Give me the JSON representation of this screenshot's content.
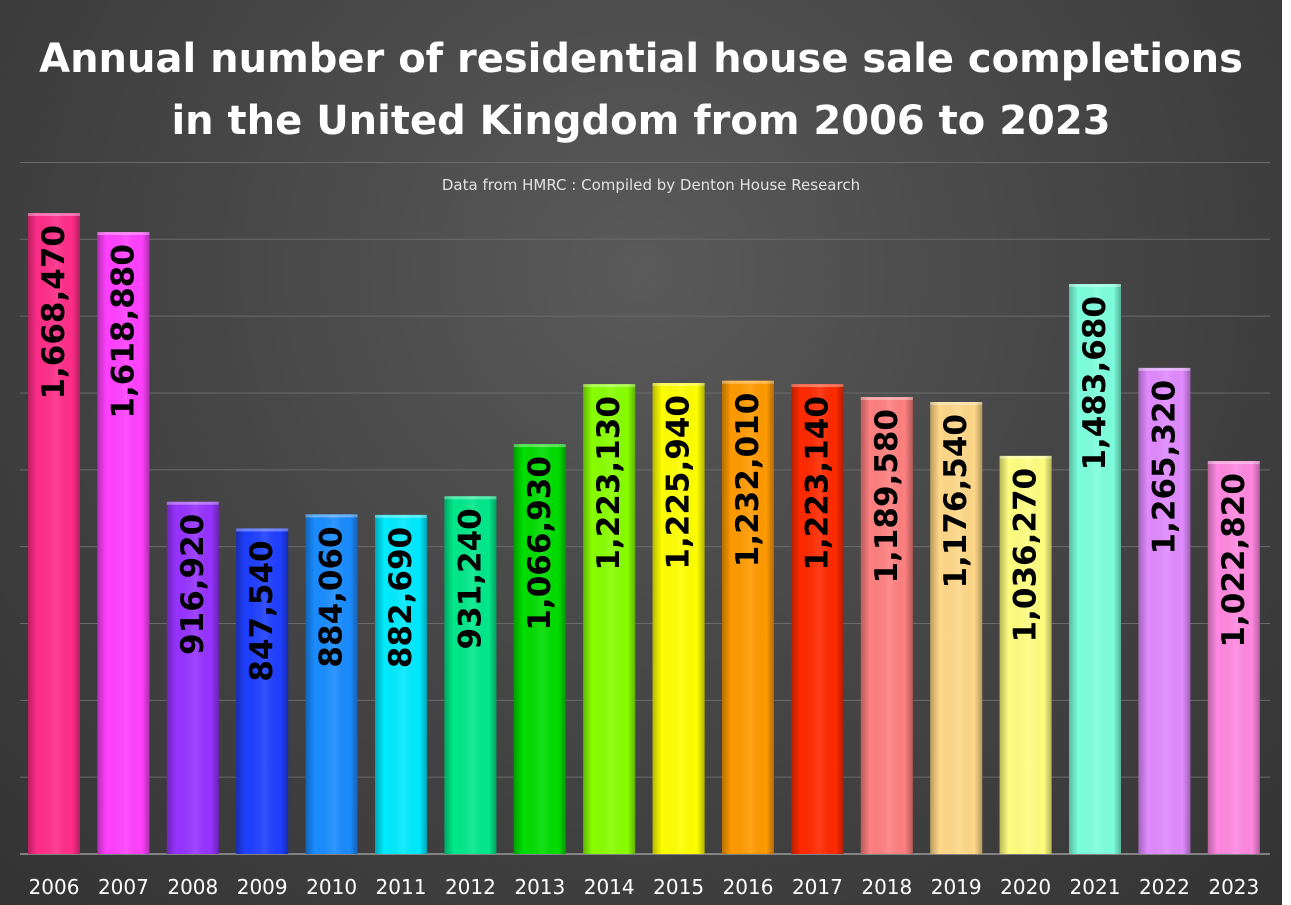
{
  "chart_data": {
    "type": "bar",
    "title": "Annual number of residential house sale completions in the United Kingdom from 2006 to 2023",
    "title_lines": [
      "Annual number of residential house sale completions",
      "in the United Kingdom from 2006 to 2023"
    ],
    "subtitle": "Data from HMRC : Compiled by Denton House Research",
    "xlabel": "",
    "ylabel": "",
    "ylim": [
      0,
      1800000
    ],
    "grid": true,
    "categories": [
      "2006",
      "2007",
      "2008",
      "2009",
      "2010",
      "2011",
      "2012",
      "2013",
      "2014",
      "2015",
      "2016",
      "2017",
      "2018",
      "2019",
      "2020",
      "2021",
      "2022",
      "2023"
    ],
    "values": [
      1668470,
      1618880,
      916920,
      847540,
      884060,
      882690,
      931240,
      1066930,
      1223130,
      1225940,
      1232010,
      1223140,
      1189580,
      1176540,
      1036270,
      1483680,
      1265320,
      1022820
    ],
    "data_labels": [
      "1,668,470",
      "1,618,880",
      "916,920",
      "847,540",
      "884,060",
      "882,690",
      "931,240",
      "1,066,930",
      "1,223,130",
      "1,225,940",
      "1,232,010",
      "1,223,140",
      "1,189,580",
      "1,176,540",
      "1,036,270",
      "1,483,680",
      "1,265,320",
      "1,022,820"
    ],
    "colors": [
      "#ff2d88",
      "#ff40ff",
      "#9633ff",
      "#1f3fff",
      "#1a8cff",
      "#00eaff",
      "#00e88a",
      "#00dd00",
      "#88ff00",
      "#ffff00",
      "#ff9a00",
      "#ff2a00",
      "#ff8080",
      "#ffd888",
      "#ffff80",
      "#7dffdd",
      "#e08aff",
      "#ff88e0"
    ]
  }
}
